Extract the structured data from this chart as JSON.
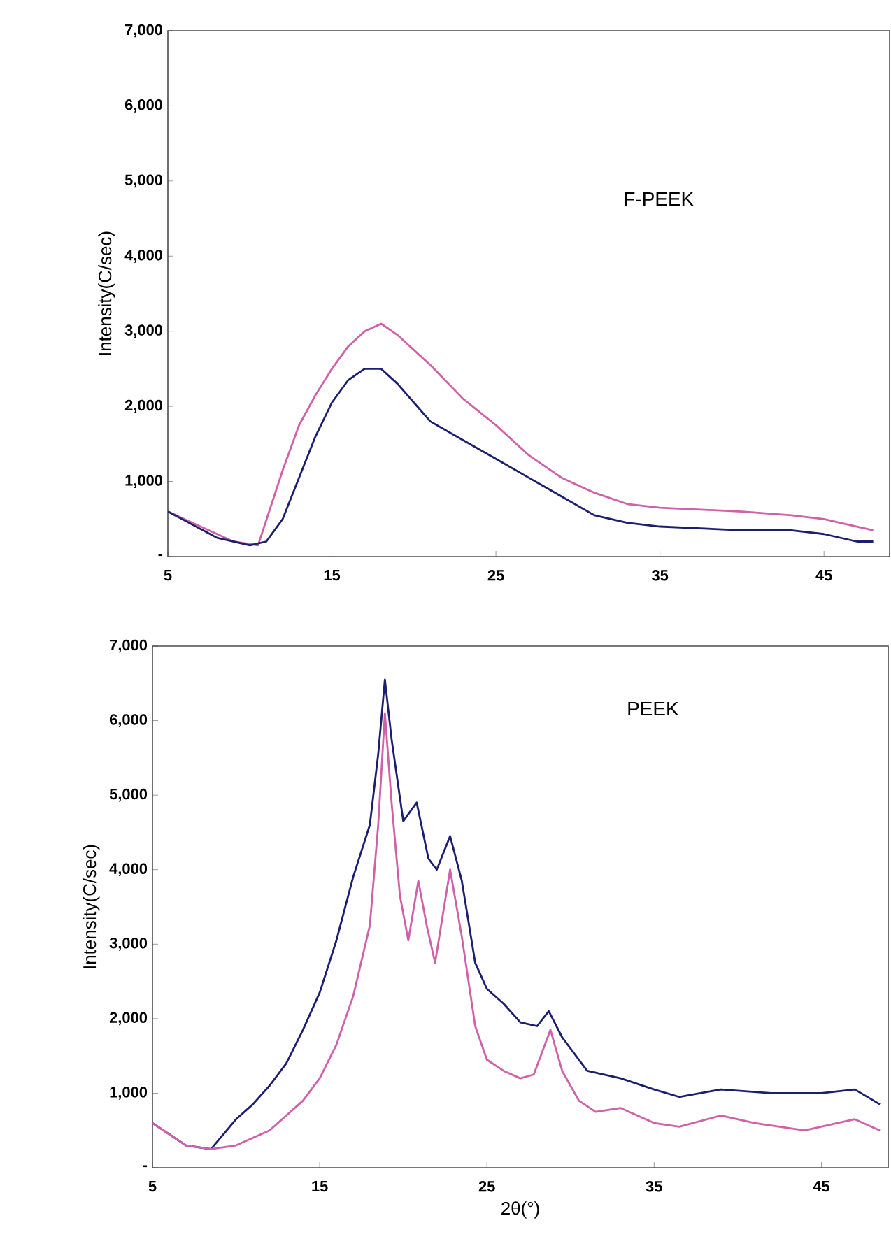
{
  "chart_data": [
    {
      "type": "line",
      "ylabel": "Intensity(C/sec)",
      "annotations": [
        "F-PEEK"
      ],
      "xlim": [
        5,
        49
      ],
      "ylim": [
        0,
        7000
      ],
      "xticks": [
        5,
        15,
        25,
        35,
        45
      ],
      "yticks": [
        {
          "value": 0,
          "label": "-"
        },
        {
          "value": 1000,
          "label": "1,000"
        },
        {
          "value": 2000,
          "label": "2,000"
        },
        {
          "value": 3000,
          "label": "3,000"
        },
        {
          "value": 4000,
          "label": "4,000"
        },
        {
          "value": 5000,
          "label": "5,000"
        },
        {
          "value": 6000,
          "label": "6,000"
        },
        {
          "value": 7000,
          "label": "7,000"
        }
      ],
      "series": [
        {
          "color": "#d060a8",
          "x": [
            5,
            9,
            10.5,
            12,
            13,
            14,
            15,
            16,
            17,
            18,
            19,
            20,
            21,
            23,
            25,
            27,
            29,
            31,
            33,
            35,
            40,
            43,
            45,
            47,
            48
          ],
          "values": [
            600,
            200,
            150,
            1150,
            1750,
            2150,
            2500,
            2800,
            3000,
            3100,
            2950,
            2750,
            2550,
            2100,
            1750,
            1350,
            1050,
            850,
            700,
            650,
            600,
            550,
            500,
            400,
            350
          ]
        },
        {
          "color": "#1c1f6e",
          "x": [
            5,
            8,
            10,
            11,
            12,
            13,
            14,
            15,
            16,
            17,
            18,
            19,
            20,
            21,
            23,
            25,
            27,
            29,
            31,
            33,
            35,
            40,
            43,
            45,
            47,
            48
          ],
          "values": [
            600,
            250,
            150,
            200,
            500,
            1050,
            1600,
            2050,
            2350,
            2500,
            2500,
            2300,
            2050,
            1800,
            1550,
            1300,
            1050,
            800,
            550,
            450,
            400,
            350,
            350,
            300,
            200,
            200
          ]
        }
      ]
    },
    {
      "type": "line",
      "ylabel": "Intensity(C/sec)",
      "xlabel": "2θ(°)",
      "annotations": [
        "PEEK"
      ],
      "xlim": [
        5,
        49
      ],
      "ylim": [
        0,
        7000
      ],
      "xticks": [
        5,
        15,
        25,
        35,
        45
      ],
      "yticks": [
        {
          "value": 0,
          "label": "-"
        },
        {
          "value": 1000,
          "label": "1,000"
        },
        {
          "value": 2000,
          "label": "2,000"
        },
        {
          "value": 3000,
          "label": "3,000"
        },
        {
          "value": 4000,
          "label": "4,000"
        },
        {
          "value": 5000,
          "label": "5,000"
        },
        {
          "value": 6000,
          "label": "6,000"
        },
        {
          "value": 7000,
          "label": "7,000"
        }
      ],
      "series": [
        {
          "color": "#1c1f6e",
          "x": [
            5,
            7,
            8.5,
            10,
            11,
            12,
            13,
            14,
            15,
            16,
            17,
            18,
            18.5,
            18.9,
            19.3,
            20,
            20.8,
            21.5,
            22,
            22.8,
            23.5,
            24.3,
            25,
            26,
            27,
            28,
            28.7,
            29.5,
            31,
            33,
            35,
            36.5,
            39,
            42,
            45,
            47,
            48.5
          ],
          "values": [
            600,
            300,
            250,
            650,
            850,
            1100,
            1400,
            1850,
            2350,
            3050,
            3900,
            4600,
            5550,
            6550,
            5750,
            4650,
            4900,
            4150,
            4000,
            4450,
            3850,
            2750,
            2400,
            2200,
            1950,
            1900,
            2100,
            1750,
            1300,
            1200,
            1050,
            950,
            1050,
            1000,
            1000,
            1050,
            850
          ]
        },
        {
          "color": "#d060a8",
          "x": [
            5,
            7,
            8.5,
            10,
            12,
            14,
            15,
            16,
            17,
            18,
            18.5,
            18.9,
            19.3,
            19.8,
            20.3,
            20.9,
            21.4,
            21.9,
            22.8,
            23.5,
            24.3,
            25,
            26,
            27,
            27.8,
            28.8,
            29.5,
            30.5,
            31.5,
            33,
            35,
            36.5,
            39,
            41,
            44,
            47,
            48.5
          ],
          "values": [
            600,
            300,
            250,
            300,
            500,
            900,
            1200,
            1650,
            2300,
            3250,
            4600,
            6100,
            4900,
            3650,
            3050,
            3850,
            3250,
            2750,
            4000,
            3100,
            1900,
            1450,
            1300,
            1200,
            1250,
            1850,
            1300,
            900,
            750,
            800,
            600,
            550,
            700,
            600,
            500,
            650,
            500
          ]
        }
      ]
    }
  ]
}
